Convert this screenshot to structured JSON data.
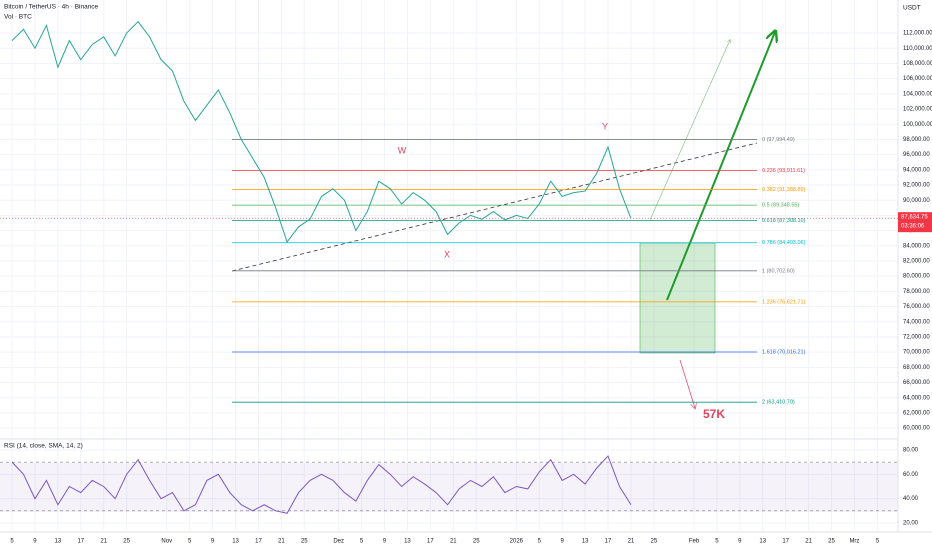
{
  "chart_data": [
    {
      "type": "line",
      "title": "Bitcoin / TetherUS · 4h · Binance",
      "subtitle": "Vol · BTC",
      "axis_unit": "USDT",
      "color": "#26a69a",
      "x": [
        0,
        2,
        4,
        6,
        8,
        10,
        12,
        14,
        16,
        18,
        20,
        22,
        24,
        26,
        28,
        30,
        32,
        34,
        36,
        38,
        40,
        42,
        44,
        46,
        48,
        50,
        52,
        54,
        56,
        58,
        60,
        62,
        64,
        66,
        68,
        70,
        72,
        74,
        76,
        78,
        80,
        82,
        84,
        86,
        88,
        90,
        92,
        94,
        96,
        98,
        100,
        102,
        104,
        106,
        108
      ],
      "values": [
        111000,
        112500,
        110000,
        113000,
        107500,
        111000,
        108500,
        110500,
        111500,
        109000,
        112000,
        113500,
        111500,
        108500,
        107000,
        103000,
        100500,
        102500,
        104500,
        101500,
        98000,
        95500,
        93000,
        89000,
        84500,
        86500,
        87500,
        90500,
        91500,
        90000,
        86000,
        88500,
        92500,
        91500,
        89500,
        91000,
        90000,
        88500,
        85500,
        87000,
        88000,
        87500,
        88500,
        87400,
        88000,
        87600,
        89500,
        92500,
        90500,
        91000,
        91200,
        93500,
        97000,
        91500,
        87600
      ],
      "xlim": [
        -2.1,
        154.6
      ],
      "ylim": [
        58700,
        116350
      ],
      "yticks": [
        {
          "value": 60000,
          "label": "60,000.00"
        },
        {
          "value": 62000,
          "label": "62,000.00"
        },
        {
          "value": 64000,
          "label": "64,000.00"
        },
        {
          "value": 66000,
          "label": "66,000.00"
        },
        {
          "value": 68000,
          "label": "68,000.00"
        },
        {
          "value": 70000,
          "label": "70,000.00"
        },
        {
          "value": 72000,
          "label": "72,000.00"
        },
        {
          "value": 74000,
          "label": "74,000.00"
        },
        {
          "value": 76000,
          "label": "76,000.00"
        },
        {
          "value": 78000,
          "label": "78,000.00"
        },
        {
          "value": 80000,
          "label": "80,000.00"
        },
        {
          "value": 82000,
          "label": "82,000.00"
        },
        {
          "value": 84000,
          "label": "84,000.00"
        },
        {
          "value": 86000,
          "label": "86,000.00"
        },
        {
          "value": 88000,
          "label": "88,000.00"
        },
        {
          "value": 90000,
          "label": "90,000.00"
        },
        {
          "value": 92000,
          "label": "92,000.00"
        },
        {
          "value": 94000,
          "label": "94,000.00"
        },
        {
          "value": 96000,
          "label": "96,000.00"
        },
        {
          "value": 98000,
          "label": "98,000.00"
        },
        {
          "value": 100000,
          "label": "100,000.00"
        },
        {
          "value": 102000,
          "label": "102,000.00"
        },
        {
          "value": 104000,
          "label": "104,000.00"
        },
        {
          "value": 106000,
          "label": "106,000.00"
        },
        {
          "value": 108000,
          "label": "108,000.00"
        },
        {
          "value": 110000,
          "label": "110,000.00"
        },
        {
          "value": 112000,
          "label": "112,000.00"
        }
      ],
      "last_price": {
        "value": 87634.75,
        "label": "87,634.75"
      },
      "countdown": "03:36:06",
      "fib_levels": [
        {
          "price": 97994.49,
          "label": "0 (97,994.49)",
          "color": "#787b86"
        },
        {
          "price": 93911.61,
          "label": "0.236 (93,911.61)",
          "color": "#f23645"
        },
        {
          "price": 91388.89,
          "label": "0.382 (91,388.89)",
          "color": "#ff9800"
        },
        {
          "price": 89348.55,
          "label": "0.5 (89,348.55)",
          "color": "#4caf50"
        },
        {
          "price": 87308.1,
          "label": "0.618 (87,308.10)",
          "color": "#089981"
        },
        {
          "price": 84403.06,
          "label": "0.786 (84,403.06)",
          "color": "#00bcd4"
        },
        {
          "price": 80702.6,
          "label": "1 (80,702.60)",
          "color": "#787b86"
        },
        {
          "price": 76621.71,
          "label": "1.236 (76,621.71)",
          "color": "#ff9800"
        },
        {
          "price": 70016.21,
          "label": "1.618 (70,016.21)",
          "color": "#2962ff"
        },
        {
          "price": 63410.7,
          "label": "2 (63,410.70)",
          "color": "#089981"
        }
      ],
      "annotations": [
        "W",
        "X",
        "Y",
        "57K"
      ]
    },
    {
      "type": "line",
      "title": "RSI (14, close, SMA, 14, 2)",
      "color": "#7e57c2",
      "x": [
        0,
        2,
        4,
        6,
        8,
        10,
        12,
        14,
        16,
        18,
        20,
        22,
        24,
        26,
        28,
        30,
        32,
        34,
        36,
        38,
        40,
        42,
        44,
        46,
        48,
        50,
        52,
        54,
        56,
        58,
        60,
        62,
        64,
        66,
        68,
        70,
        72,
        74,
        76,
        78,
        80,
        82,
        84,
        86,
        88,
        90,
        92,
        94,
        96,
        98,
        100,
        102,
        104,
        106,
        108
      ],
      "values": [
        70,
        60,
        40,
        55,
        35,
        50,
        45,
        55,
        50,
        40,
        60,
        72,
        55,
        40,
        45,
        30,
        35,
        55,
        60,
        45,
        35,
        30,
        35,
        30,
        28,
        45,
        55,
        60,
        55,
        45,
        38,
        55,
        68,
        60,
        50,
        58,
        52,
        45,
        35,
        48,
        55,
        50,
        58,
        45,
        50,
        48,
        62,
        72,
        55,
        60,
        52,
        65,
        75,
        50,
        35
      ],
      "xlim": [
        -2.1,
        154.6
      ],
      "ylim": [
        14.25,
        88.2
      ],
      "bands": [
        30,
        70
      ],
      "yticks": [
        {
          "value": 20,
          "label": "20.00"
        },
        {
          "value": 40,
          "label": "40.00"
        },
        {
          "value": 60,
          "label": "60.00"
        },
        {
          "value": 80,
          "label": "80.00"
        }
      ],
      "xticks": [
        {
          "value": 0,
          "label": "5"
        },
        {
          "value": 4,
          "label": "9"
        },
        {
          "value": 8,
          "label": "13"
        },
        {
          "value": 12,
          "label": "17"
        },
        {
          "value": 16,
          "label": "21"
        },
        {
          "value": 20,
          "label": "25"
        },
        {
          "value": 27,
          "label": "Nov"
        },
        {
          "value": 31,
          "label": "5"
        },
        {
          "value": 35,
          "label": "9"
        },
        {
          "value": 39,
          "label": "13"
        },
        {
          "value": 43,
          "label": "17"
        },
        {
          "value": 47,
          "label": "21"
        },
        {
          "value": 51,
          "label": "25"
        },
        {
          "value": 57,
          "label": "Dez"
        },
        {
          "value": 61,
          "label": "5"
        },
        {
          "value": 65,
          "label": "9"
        },
        {
          "value": 69,
          "label": "13"
        },
        {
          "value": 73,
          "label": "17"
        },
        {
          "value": 77,
          "label": "21"
        },
        {
          "value": 81,
          "label": "25"
        },
        {
          "value": 88,
          "label": "2026"
        },
        {
          "value": 92,
          "label": "5"
        },
        {
          "value": 96,
          "label": "9"
        },
        {
          "value": 100,
          "label": "13"
        },
        {
          "value": 104,
          "label": "17"
        },
        {
          "value": 108,
          "label": "21"
        },
        {
          "value": 112,
          "label": "25"
        },
        {
          "value": 119,
          "label": "Feb"
        },
        {
          "value": 123,
          "label": "5"
        },
        {
          "value": 127,
          "label": "9"
        },
        {
          "value": 131,
          "label": "13"
        },
        {
          "value": 135,
          "label": "17"
        },
        {
          "value": 139,
          "label": "21"
        },
        {
          "value": 143,
          "label": "25"
        },
        {
          "value": 147,
          "label": "Mrz"
        },
        {
          "value": 151,
          "label": "5"
        }
      ]
    }
  ]
}
